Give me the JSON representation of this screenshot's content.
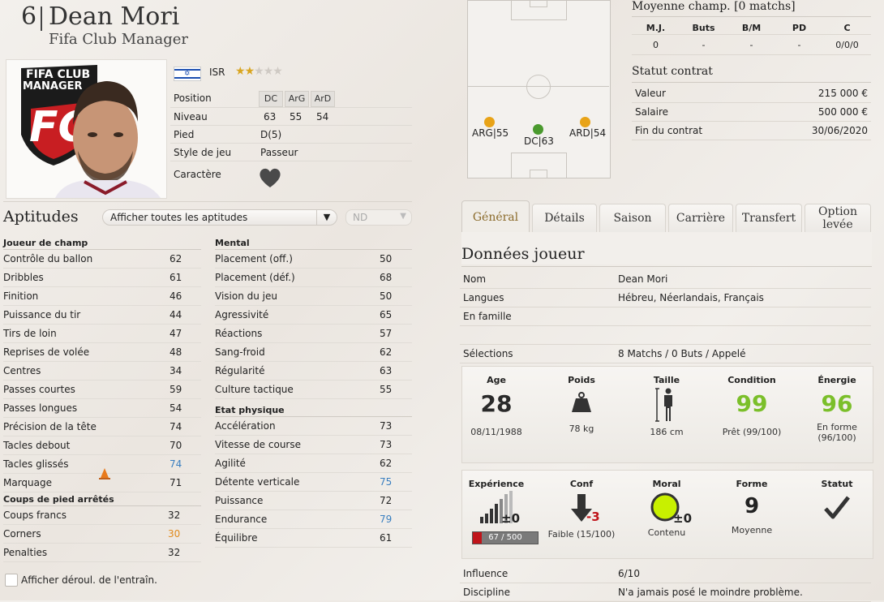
{
  "header": {
    "number": "6",
    "name": "Dean Mori",
    "club": "Fifa Club Manager"
  },
  "portrait": {
    "logo_text": "FIFA CLUB MANAGER",
    "logo_letters": "FC"
  },
  "nation": {
    "code": "ISR",
    "stars": 2,
    "max_stars": 5
  },
  "info": {
    "position_label": "Position",
    "positions": [
      "DC",
      "ArG",
      "ArD"
    ],
    "level_label": "Niveau",
    "levels": [
      "63",
      "55",
      "54"
    ],
    "foot_label": "Pied",
    "foot_value": "D(5)",
    "style_label": "Style de jeu",
    "style_value": "Passeur",
    "character_label": "Caractère"
  },
  "aptitudes": {
    "title": "Aptitudes",
    "filter": "Afficher toutes les aptitudes",
    "nd": "ND",
    "field_title": "Joueur de champ",
    "field": [
      {
        "name": "Contrôle du ballon",
        "value": "62",
        "color": "#222222"
      },
      {
        "name": "Dribbles",
        "value": "61",
        "color": "#222222"
      },
      {
        "name": "Finition",
        "value": "46",
        "color": "#222222"
      },
      {
        "name": "Puissance du tir",
        "value": "44",
        "color": "#222222"
      },
      {
        "name": "Tirs de loin",
        "value": "47",
        "color": "#222222"
      },
      {
        "name": "Reprises de volée",
        "value": "48",
        "color": "#222222"
      },
      {
        "name": "Centres",
        "value": "34",
        "color": "#222222"
      },
      {
        "name": "Passes courtes",
        "value": "59",
        "color": "#222222"
      },
      {
        "name": "Passes longues",
        "value": "54",
        "color": "#222222"
      },
      {
        "name": "Précision de la tête",
        "value": "74",
        "color": "#222222"
      },
      {
        "name": "Tacles debout",
        "value": "70",
        "color": "#222222"
      },
      {
        "name": "Tacles glissés",
        "value": "74",
        "color": "#3a7fc0"
      },
      {
        "name": "Marquage",
        "value": "71",
        "color": "#222222"
      }
    ],
    "setpiece_title": "Coups de pied arrêtés",
    "setpiece": [
      {
        "name": "Coups francs",
        "value": "32",
        "color": "#222222"
      },
      {
        "name": "Corners",
        "value": "30",
        "color": "#e08a1c"
      },
      {
        "name": "Penalties",
        "value": "32",
        "color": "#222222"
      }
    ],
    "mental_title": "Mental",
    "mental": [
      {
        "name": "Placement (off.)",
        "value": "50",
        "color": "#222222"
      },
      {
        "name": "Placement (déf.)",
        "value": "68",
        "color": "#222222"
      },
      {
        "name": "Vision du jeu",
        "value": "50",
        "color": "#222222"
      },
      {
        "name": "Agressivité",
        "value": "65",
        "color": "#222222"
      },
      {
        "name": "Réactions",
        "value": "57",
        "color": "#222222"
      },
      {
        "name": "Sang-froid",
        "value": "62",
        "color": "#222222"
      },
      {
        "name": "Régularité",
        "value": "63",
        "color": "#222222"
      },
      {
        "name": "Culture tactique",
        "value": "55",
        "color": "#222222"
      }
    ],
    "physical_title": "Etat physique",
    "physical": [
      {
        "name": "Accélération",
        "value": "73",
        "color": "#222222"
      },
      {
        "name": "Vitesse de course",
        "value": "73",
        "color": "#222222"
      },
      {
        "name": "Agilité",
        "value": "62",
        "color": "#222222"
      },
      {
        "name": "Détente verticale",
        "value": "75",
        "color": "#3a7fc0"
      },
      {
        "name": "Puissance",
        "value": "72",
        "color": "#222222"
      },
      {
        "name": "Endurance",
        "value": "79",
        "color": "#3a7fc0"
      },
      {
        "name": "Équilibre",
        "value": "61",
        "color": "#222222"
      }
    ],
    "show_training": "Afficher déroul. de l'entraîn."
  },
  "pitch": {
    "markers": [
      {
        "label": "ARG|55",
        "color": "#e8a317"
      },
      {
        "label": "DC|63",
        "color": "#4a9a2e"
      },
      {
        "label": "ARD|54",
        "color": "#e8a317"
      }
    ]
  },
  "average": {
    "title": "Moyenne champ. [0 matchs]",
    "headers": [
      "M.J.",
      "Buts",
      "B/M",
      "PD",
      "C"
    ],
    "values": [
      "0",
      "-",
      "-",
      "-",
      "0/0/0"
    ]
  },
  "contract": {
    "title": "Statut contrat",
    "rows": [
      {
        "label": "Valeur",
        "value": "215 000 €"
      },
      {
        "label": "Salaire",
        "value": "500 000 €"
      },
      {
        "label": "Fin du contrat",
        "value": "30/06/2020"
      }
    ]
  },
  "tabs": [
    "Général",
    "Détails",
    "Saison",
    "Carrière",
    "Transfert",
    "Option levée"
  ],
  "player_data": {
    "title": "Données joueur",
    "rows": [
      {
        "label": "Nom",
        "value": "Dean Mori"
      },
      {
        "label": "Langues",
        "value": "Hébreu, Néerlandais, Français"
      },
      {
        "label": "En famille",
        "value": ""
      },
      {
        "label": "",
        "value": ""
      },
      {
        "label": "Sélections",
        "value": "8 Matchs / 0 Buts / Appelé"
      }
    ]
  },
  "panel1": {
    "age_label": "Age",
    "age": "28",
    "birth": "08/11/1988",
    "weight_label": "Poids",
    "weight": "78 kg",
    "height_label": "Taille",
    "height": "186 cm",
    "condition_label": "Condition",
    "condition": "99",
    "condition_sub": "Prêt (99/100)",
    "energy_label": "Énergie",
    "energy": "96",
    "energy_sub": "En forme (96/100)",
    "green": "#7bbf2a"
  },
  "panel2": {
    "experience_label": "Expérience",
    "experience_bar": "67 / 500",
    "experience_fraction": 0.134,
    "experience_delta": "±0",
    "conf_label": "Conf",
    "conf_delta": "-3",
    "conf_sub": "Faible (15/100)",
    "moral_label": "Moral",
    "moral_delta": "±0",
    "moral_sub": "Contenu",
    "forme_label": "Forme",
    "forme": "9",
    "forme_sub": "Moyenne",
    "statut_label": "Statut"
  },
  "bottom_rows": [
    {
      "label": "Influence",
      "value": "6/10"
    },
    {
      "label": "Discipline",
      "value": "N'a jamais posé le moindre problème."
    }
  ]
}
